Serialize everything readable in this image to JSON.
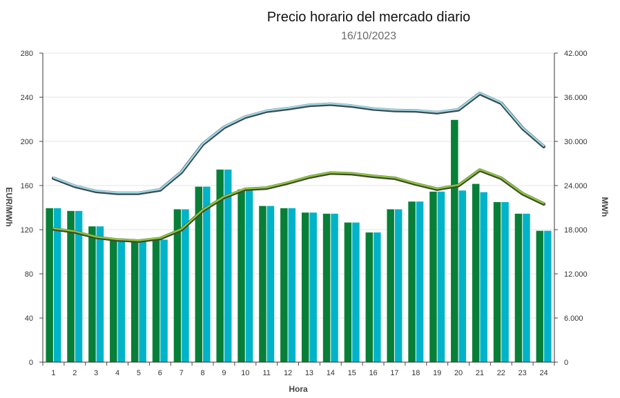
{
  "chart_data": {
    "type": "bar",
    "title": "Precio horario del mercado diario",
    "subtitle": "16/10/2023",
    "xlabel": "Hora",
    "ylabel": "EUR/MWh",
    "y2label": "MWh",
    "categories": [
      "1",
      "2",
      "3",
      "4",
      "5",
      "6",
      "7",
      "8",
      "9",
      "10",
      "11",
      "12",
      "13",
      "14",
      "15",
      "16",
      "17",
      "18",
      "19",
      "20",
      "21",
      "22",
      "23",
      "24"
    ],
    "ylim": [
      0,
      280
    ],
    "y2lim": [
      0,
      42000
    ],
    "yticks": [
      "0",
      "40",
      "80",
      "120",
      "160",
      "200",
      "240",
      "280"
    ],
    "y2ticks": [
      "0",
      "6.000",
      "12.000",
      "18.000",
      "24.000",
      "30.000",
      "36.000",
      "42.000"
    ],
    "grid": true,
    "bar_series": [
      {
        "color": "#087f38",
        "values": [
          139.5,
          137,
          123,
          112,
          110,
          111,
          138.5,
          159,
          174.5,
          156.5,
          141.5,
          139.5,
          135.5,
          134.5,
          126.5,
          117.5,
          138.5,
          145.5,
          154.5,
          219.5,
          161.5,
          145,
          134.5,
          119
        ]
      },
      {
        "color": "#00b3c9",
        "values": [
          139.5,
          137,
          123,
          112,
          110,
          111,
          138.5,
          159,
          174.5,
          156.5,
          141.5,
          139.5,
          135.5,
          134.5,
          126.5,
          117.5,
          138.5,
          145.5,
          154.5,
          155.5,
          154,
          145,
          134.5,
          119
        ]
      }
    ],
    "line_series": [
      {
        "axis": "y2",
        "color": "#9dd8e6",
        "outline": "#3b4a4f",
        "values": [
          25000,
          23900,
          23200,
          22950,
          22950,
          23400,
          25800,
          29600,
          31900,
          33300,
          34100,
          34450,
          34900,
          35050,
          34800,
          34400,
          34200,
          34150,
          33900,
          34300,
          36500,
          35200,
          31800,
          29300
        ]
      },
      {
        "axis": "y2",
        "color": "#8cc63f",
        "outline": "#3d4a2a",
        "values": [
          18100,
          17700,
          16950,
          16600,
          16450,
          16800,
          18000,
          20600,
          22400,
          23500,
          23650,
          24350,
          25150,
          25700,
          25600,
          25250,
          25000,
          24200,
          23500,
          24000,
          26100,
          25000,
          22900,
          21500
        ]
      }
    ]
  }
}
